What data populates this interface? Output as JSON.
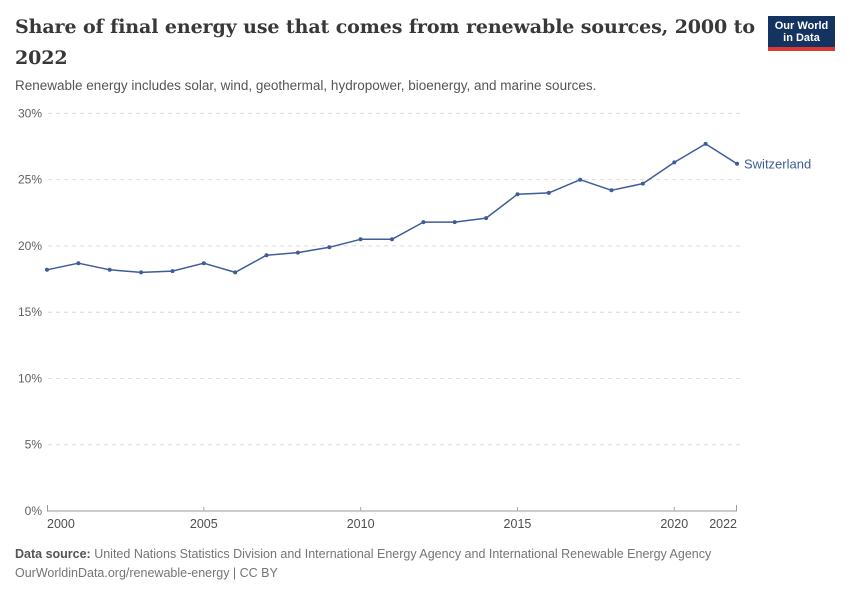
{
  "header": {
    "logo": {
      "line1": "Our World",
      "line2": "in Data"
    }
  },
  "chart_data": {
    "type": "line",
    "title": "Share of final energy use that comes from renewable sources, 2000 to 2022",
    "subtitle": "Renewable energy includes solar, wind, geothermal, hydropower, bioenergy, and marine sources.",
    "x": [
      2000,
      2001,
      2002,
      2003,
      2004,
      2005,
      2006,
      2007,
      2008,
      2009,
      2010,
      2011,
      2012,
      2013,
      2014,
      2015,
      2016,
      2017,
      2018,
      2019,
      2020,
      2021,
      2022
    ],
    "series": [
      {
        "name": "Switzerland",
        "color": "#3d5c99",
        "values": [
          18.2,
          18.7,
          18.2,
          18.0,
          18.1,
          18.7,
          18.0,
          19.3,
          19.5,
          19.9,
          20.5,
          20.5,
          21.8,
          21.8,
          22.1,
          23.9,
          24.0,
          25.0,
          24.2,
          24.7,
          26.3,
          27.7,
          26.2
        ]
      }
    ],
    "xlim": [
      2000,
      2022
    ],
    "ylim": [
      0,
      30
    ],
    "y_ticks": [
      0,
      5,
      10,
      15,
      20,
      25,
      30
    ],
    "y_tick_suffix": "%",
    "x_ticks": [
      2000,
      2005,
      2010,
      2015,
      2020,
      2022
    ],
    "grid": "horizontal-dashed",
    "legend_position": "line-end-label",
    "entity_label": "Switzerland"
  },
  "footer": {
    "source_label": "Data source:",
    "source_text": " United Nations Statistics Division and International Energy Agency and International Renewable Energy Agency",
    "link_line": "OurWorldinData.org/renewable-energy | CC BY"
  },
  "colors": {
    "line_blue": "#3d5c99",
    "logo_navy": "#153360",
    "logo_red": "#d93a34",
    "grid_gray": "#dcdcdc",
    "axis_gray": "#9a9a9a",
    "title_gray": "#383838",
    "subtitle_gray": "#555555",
    "footer_gray": "#757575"
  }
}
